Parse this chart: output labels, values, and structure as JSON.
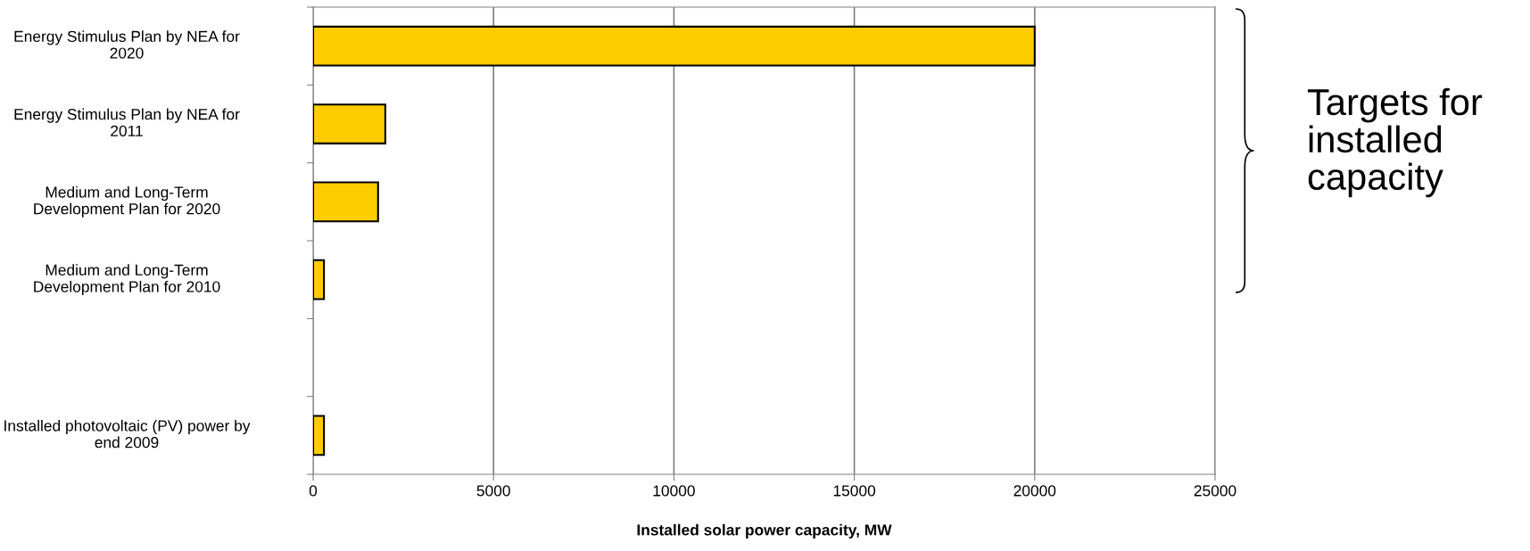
{
  "chart_data": {
    "type": "bar",
    "orientation": "horizontal",
    "xlabel": "Installed solar power capacity, MW",
    "categories": [
      "Energy Stimulus Plan by NEA for 2020",
      "Energy Stimulus Plan by NEA for 2011",
      "Medium and Long-Term Development Plan for 2020",
      "Medium and Long-Term Development Plan for 2010",
      null,
      "Installed photovoltaic (PV) power by end 2009"
    ],
    "values": [
      20000,
      2000,
      1800,
      300,
      null,
      300
    ],
    "color": "#ffcc00",
    "xlim": [
      0,
      25000
    ],
    "xticks": [
      0,
      5000,
      10000,
      15000,
      20000,
      25000
    ],
    "grid": "x",
    "annotations": [
      "Targets for installed capacity"
    ]
  }
}
